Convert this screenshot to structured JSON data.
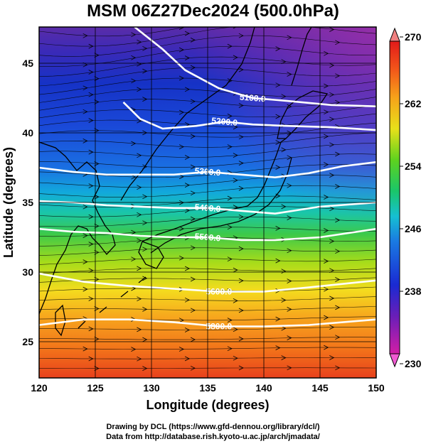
{
  "title": "MSM 06Z27Dec2024 (500.0hPa)",
  "map": {
    "lon_range": [
      120,
      150
    ],
    "lat_range": [
      22.4,
      47.6
    ],
    "x_ticks": [
      120,
      125,
      130,
      135,
      140,
      145,
      150
    ],
    "y_ticks": [
      25,
      30,
      35,
      40,
      45
    ],
    "xlabel": "Longitude (degrees)",
    "ylabel": "Latitude  (degrees)",
    "grid": true
  },
  "colorbar": {
    "min": 230,
    "max": 270,
    "labels": [
      270,
      262,
      254,
      246,
      238,
      230
    ]
  },
  "contours": [
    {
      "label": "5100.0",
      "points": [
        [
          128.5,
          47.6
        ],
        [
          131,
          46
        ],
        [
          133,
          44.5
        ],
        [
          136,
          43.2
        ],
        [
          139,
          42.5
        ],
        [
          142,
          42.3
        ],
        [
          146,
          42
        ],
        [
          150,
          41.9
        ]
      ]
    },
    {
      "label": "5200.0",
      "points": [
        [
          127.5,
          42.2
        ],
        [
          129,
          41
        ],
        [
          131,
          40.3
        ],
        [
          134,
          40.5
        ],
        [
          136.5,
          40.8
        ],
        [
          139,
          40.6
        ],
        [
          142,
          40.5
        ],
        [
          146,
          40.4
        ],
        [
          150,
          40.2
        ]
      ]
    },
    {
      "label": "5300.0",
      "points": [
        [
          120,
          37.5
        ],
        [
          123,
          37.2
        ],
        [
          126,
          37
        ],
        [
          129,
          37
        ],
        [
          132,
          37
        ],
        [
          135,
          37.2
        ],
        [
          138,
          37
        ],
        [
          141,
          36.8
        ],
        [
          144,
          37.1
        ],
        [
          147,
          37.6
        ],
        [
          150,
          37.9
        ]
      ]
    },
    {
      "label": "5400.0",
      "points": [
        [
          120,
          35.1
        ],
        [
          123,
          35
        ],
        [
          126,
          34.8
        ],
        [
          129,
          34.7
        ],
        [
          132,
          34.6
        ],
        [
          135,
          34.6
        ],
        [
          138,
          34.4
        ],
        [
          141,
          34.2
        ],
        [
          145,
          34.7
        ],
        [
          150,
          35
        ]
      ]
    },
    {
      "label": "5500.0",
      "points": [
        [
          120,
          33.1
        ],
        [
          123,
          32.9
        ],
        [
          126,
          32.8
        ],
        [
          129,
          32.6
        ],
        [
          132,
          32.5
        ],
        [
          135,
          32.5
        ],
        [
          138,
          32.3
        ],
        [
          141,
          32.3
        ],
        [
          145,
          32.5
        ],
        [
          150,
          33.1
        ]
      ]
    },
    {
      "label": "5600.0",
      "points": [
        [
          120,
          29.9
        ],
        [
          124,
          29.3
        ],
        [
          128,
          29
        ],
        [
          132,
          28.8
        ],
        [
          136,
          28.6
        ],
        [
          140,
          28.6
        ],
        [
          144,
          28.9
        ],
        [
          150,
          29.4
        ]
      ]
    },
    {
      "label": "5800.0",
      "points": [
        [
          120,
          26.2
        ],
        [
          124,
          26.6
        ],
        [
          128,
          26.6
        ],
        [
          132,
          26.4
        ],
        [
          136,
          26.1
        ],
        [
          140,
          26.1
        ],
        [
          144,
          26.2
        ],
        [
          150,
          26.6
        ]
      ]
    }
  ],
  "credits": {
    "line1": "Drawing by DCL (https://www.gfd-dennou.org/library/dcl/)",
    "line2": "Data from http://database.rish.kyoto-u.ac.jp/arch/jmadata/"
  },
  "colors": {
    "contour": "#ffffff",
    "coast": "#000000",
    "streamline": "#000000"
  }
}
